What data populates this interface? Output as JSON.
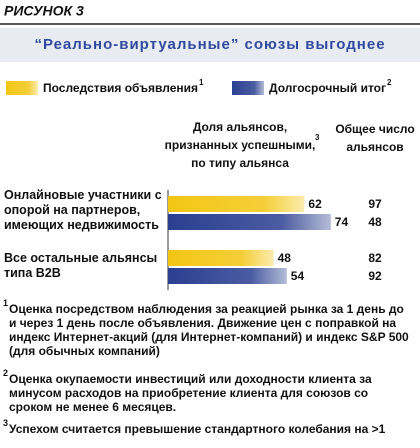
{
  "chart_data": {
    "type": "bar",
    "orientation": "horizontal",
    "title": "РИСУНОК 3",
    "subtitle": "“Реально-виртуальные” союзы выгоднее",
    "share_header": [
      "Доля альянсов,",
      "признанных успешными,",
      "по типу альянса"
    ],
    "share_header_note": "3",
    "totals_header": [
      "Общее число",
      "альянсов"
    ],
    "categories": [
      "Онлайновые участники с опорой на партнеров, имеющих недвижимость",
      "Все остальные альянсы типа B2B"
    ],
    "series": [
      {
        "name": "Последствия объявления",
        "note": "1",
        "color": "#f3c614",
        "values": [
          62,
          48
        ],
        "totals": [
          97,
          82
        ]
      },
      {
        "name": "Долгосрочный итог",
        "note": "2",
        "color": "#2b3f91",
        "values": [
          74,
          54
        ],
        "totals": [
          48,
          92
        ]
      }
    ],
    "footnotes": [
      {
        "marker": "1",
        "text": "Оценка посредством наблюдения за реакцией рынка за 1 день до и через 1 день после объявления. Движение цен с поправкой на индекс Интернет-акций (для Интернет-компаний) и индекс S&P 500 (для обычных компаний)"
      },
      {
        "marker": "2",
        "text": "Оценка окупаемости инвестиций или доходности клиента за минусом расходов на приобретение клиента для союзов со сроком не менее 6 месяцев."
      },
      {
        "marker": "3",
        "text": "Успехом считается превышение стандартного колебания  на >1"
      }
    ]
  }
}
